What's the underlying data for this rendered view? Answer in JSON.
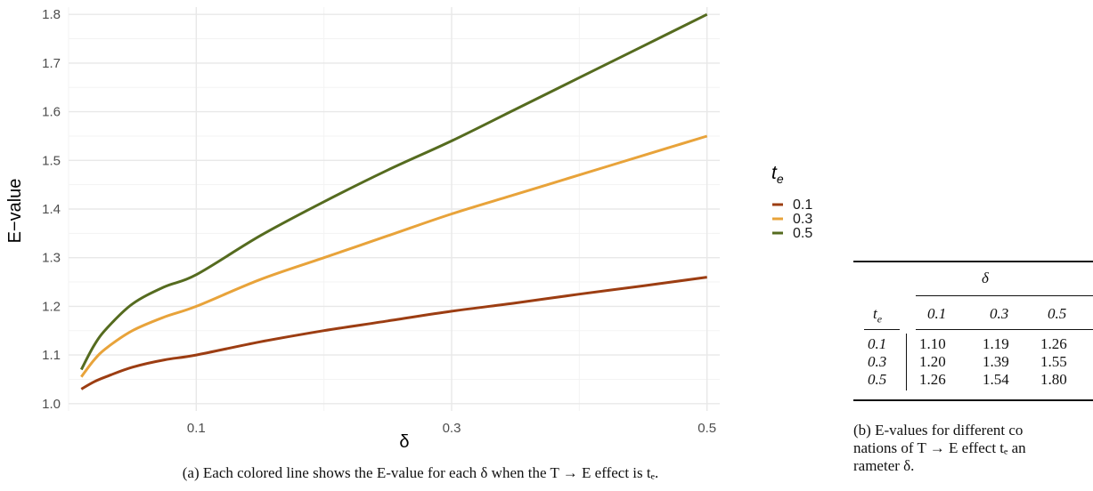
{
  "chart_data": {
    "type": "line",
    "xlabel": "δ",
    "ylabel": "E−value",
    "x_ticks": [
      "0.1",
      "0.3",
      "0.5"
    ],
    "y_ticks": [
      "1.0",
      "1.1",
      "1.2",
      "1.3",
      "1.4",
      "1.5",
      "1.6",
      "1.7",
      "1.8"
    ],
    "xlim": [
      0.0,
      0.51
    ],
    "ylim": [
      0.985,
      1.815
    ],
    "grid": true,
    "legend_position": "right",
    "legend_title": "t",
    "legend_title_sub": "e",
    "series": [
      {
        "name": "0.1",
        "color": "#9C3D12",
        "x": [
          0.01,
          0.02,
          0.03,
          0.05,
          0.075,
          0.1,
          0.15,
          0.2,
          0.25,
          0.3,
          0.35,
          0.4,
          0.45,
          0.5
        ],
        "y": [
          1.03,
          1.045,
          1.056,
          1.075,
          1.09,
          1.1,
          1.127,
          1.15,
          1.17,
          1.19,
          1.207,
          1.225,
          1.242,
          1.26
        ]
      },
      {
        "name": "0.3",
        "color": "#E8A33A",
        "x": [
          0.01,
          0.02,
          0.03,
          0.05,
          0.075,
          0.1,
          0.15,
          0.2,
          0.25,
          0.3,
          0.35,
          0.4,
          0.45,
          0.5
        ],
        "y": [
          1.055,
          1.09,
          1.115,
          1.15,
          1.178,
          1.2,
          1.255,
          1.3,
          1.345,
          1.39,
          1.43,
          1.47,
          1.51,
          1.55
        ]
      },
      {
        "name": "0.5",
        "color": "#556B1F",
        "x": [
          0.01,
          0.02,
          0.03,
          0.05,
          0.075,
          0.1,
          0.15,
          0.2,
          0.25,
          0.3,
          0.35,
          0.4,
          0.45,
          0.5
        ],
        "y": [
          1.07,
          1.12,
          1.155,
          1.205,
          1.24,
          1.265,
          1.345,
          1.415,
          1.48,
          1.54,
          1.605,
          1.67,
          1.735,
          1.8
        ]
      }
    ]
  },
  "table": {
    "header_delta": "δ",
    "header_te_main": "t",
    "header_te_sub": "e",
    "col_headers": [
      "0.1",
      "0.3",
      "0.5"
    ],
    "rows": [
      {
        "label": "0.1",
        "values": [
          "1.10",
          "1.19",
          "1.26"
        ]
      },
      {
        "label": "0.3",
        "values": [
          "1.20",
          "1.39",
          "1.55"
        ]
      },
      {
        "label": "0.5",
        "values": [
          "1.26",
          "1.54",
          "1.80"
        ]
      }
    ]
  },
  "captions": {
    "a": "(a) Each colored line shows the E-value for each δ when the T → E effect is tₑ.",
    "b_lines": [
      "(b) E-values for different co",
      "nations of T → E effect tₑ an",
      "rameter δ."
    ]
  }
}
